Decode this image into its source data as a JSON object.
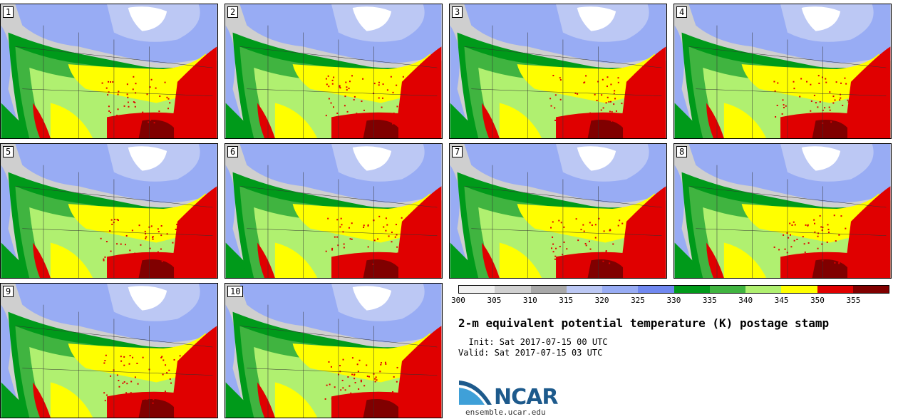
{
  "panels": [
    {
      "label": "1"
    },
    {
      "label": "2"
    },
    {
      "label": "3"
    },
    {
      "label": "4"
    },
    {
      "label": "5"
    },
    {
      "label": "6"
    },
    {
      "label": "7"
    },
    {
      "label": "8"
    },
    {
      "label": "9"
    },
    {
      "label": "10"
    }
  ],
  "legend": {
    "ticks": [
      "300",
      "305",
      "310",
      "315",
      "320",
      "325",
      "330",
      "335",
      "340",
      "345",
      "350",
      "355"
    ],
    "colors": [
      "#f0f0f0",
      "#d0d0d0",
      "#a8a8a8",
      "#bcc8f4",
      "#98acf4",
      "#7088f0",
      "#009a1a",
      "#40b440",
      "#b0f070",
      "#ffff00",
      "#e00000",
      "#800000"
    ]
  },
  "title": "2-m equivalent potential temperature (K) postage stamp",
  "init_label": "  Init: Sat 2017-07-15 00 UTC",
  "valid_label": "Valid: Sat 2017-07-15 03 UTC",
  "logo": {
    "text": "NCAR",
    "url": "ensemble.ucar.edu"
  }
}
